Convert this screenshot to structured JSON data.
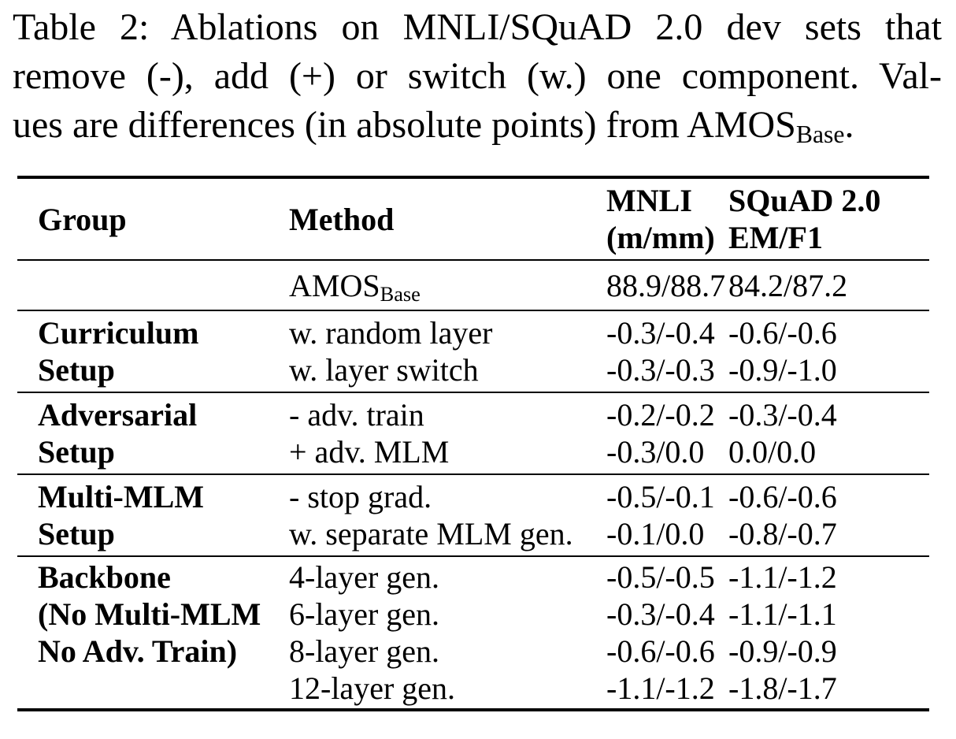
{
  "caption": {
    "line1": "Table 2: Ablations on MNLI/SQuAD 2.0 dev sets that",
    "line2": "remove (-), add (+) or switch (w.) one component. Val-",
    "line3_text": "ues are differences (in absolute points) from AMOS",
    "line3_sub": "Base",
    "line3_end": "."
  },
  "table": {
    "header": {
      "group": "Group",
      "method": "Method",
      "col3_line1": "MNLI",
      "col3_line2": "(m/mm)",
      "col4_line1": "SQuAD 2.0",
      "col4_line2": "EM/F1"
    },
    "baseline": {
      "method": "AMOS",
      "method_sub": "Base",
      "mnli": "88.9/88.7",
      "squad": "84.2/87.2"
    },
    "groups": [
      {
        "name_lines": [
          "Curriculum",
          "Setup"
        ],
        "rows": [
          {
            "method": "w. random layer",
            "mnli": "-0.3/-0.4",
            "squad": "-0.6/-0.6"
          },
          {
            "method": "w. layer switch",
            "mnli": "-0.3/-0.3",
            "squad": "-0.9/-1.0"
          }
        ]
      },
      {
        "name_lines": [
          "Adversarial",
          "Setup"
        ],
        "rows": [
          {
            "method": "- adv. train",
            "mnli": "-0.2/-0.2",
            "squad": "-0.3/-0.4"
          },
          {
            "method": "+ adv. MLM",
            "mnli": "-0.3/0.0",
            "squad": "0.0/0.0"
          }
        ]
      },
      {
        "name_lines": [
          "Multi-MLM",
          "Setup"
        ],
        "rows": [
          {
            "method": "- stop grad.",
            "mnli": "-0.5/-0.1",
            "squad": "-0.6/-0.6"
          },
          {
            "method": "w. separate MLM gen.",
            "mnli": "-0.1/0.0",
            "squad": "-0.8/-0.7"
          }
        ]
      },
      {
        "name_lines": [
          "Backbone",
          "(No Multi-MLM",
          "No Adv. Train)"
        ],
        "rows": [
          {
            "method": "4-layer gen.",
            "mnli": "-0.5/-0.5",
            "squad": "-1.1/-1.2"
          },
          {
            "method": "6-layer gen.",
            "mnli": "-0.3/-0.4",
            "squad": "-1.1/-1.1"
          },
          {
            "method": "8-layer gen.",
            "mnli": "-0.6/-0.6",
            "squad": "-0.9/-0.9"
          },
          {
            "method": "12-layer gen.",
            "mnli": "-1.1/-1.2",
            "squad": "-1.8/-1.7"
          }
        ]
      }
    ]
  },
  "colors": {
    "text": "#000000",
    "background": "#ffffff"
  }
}
